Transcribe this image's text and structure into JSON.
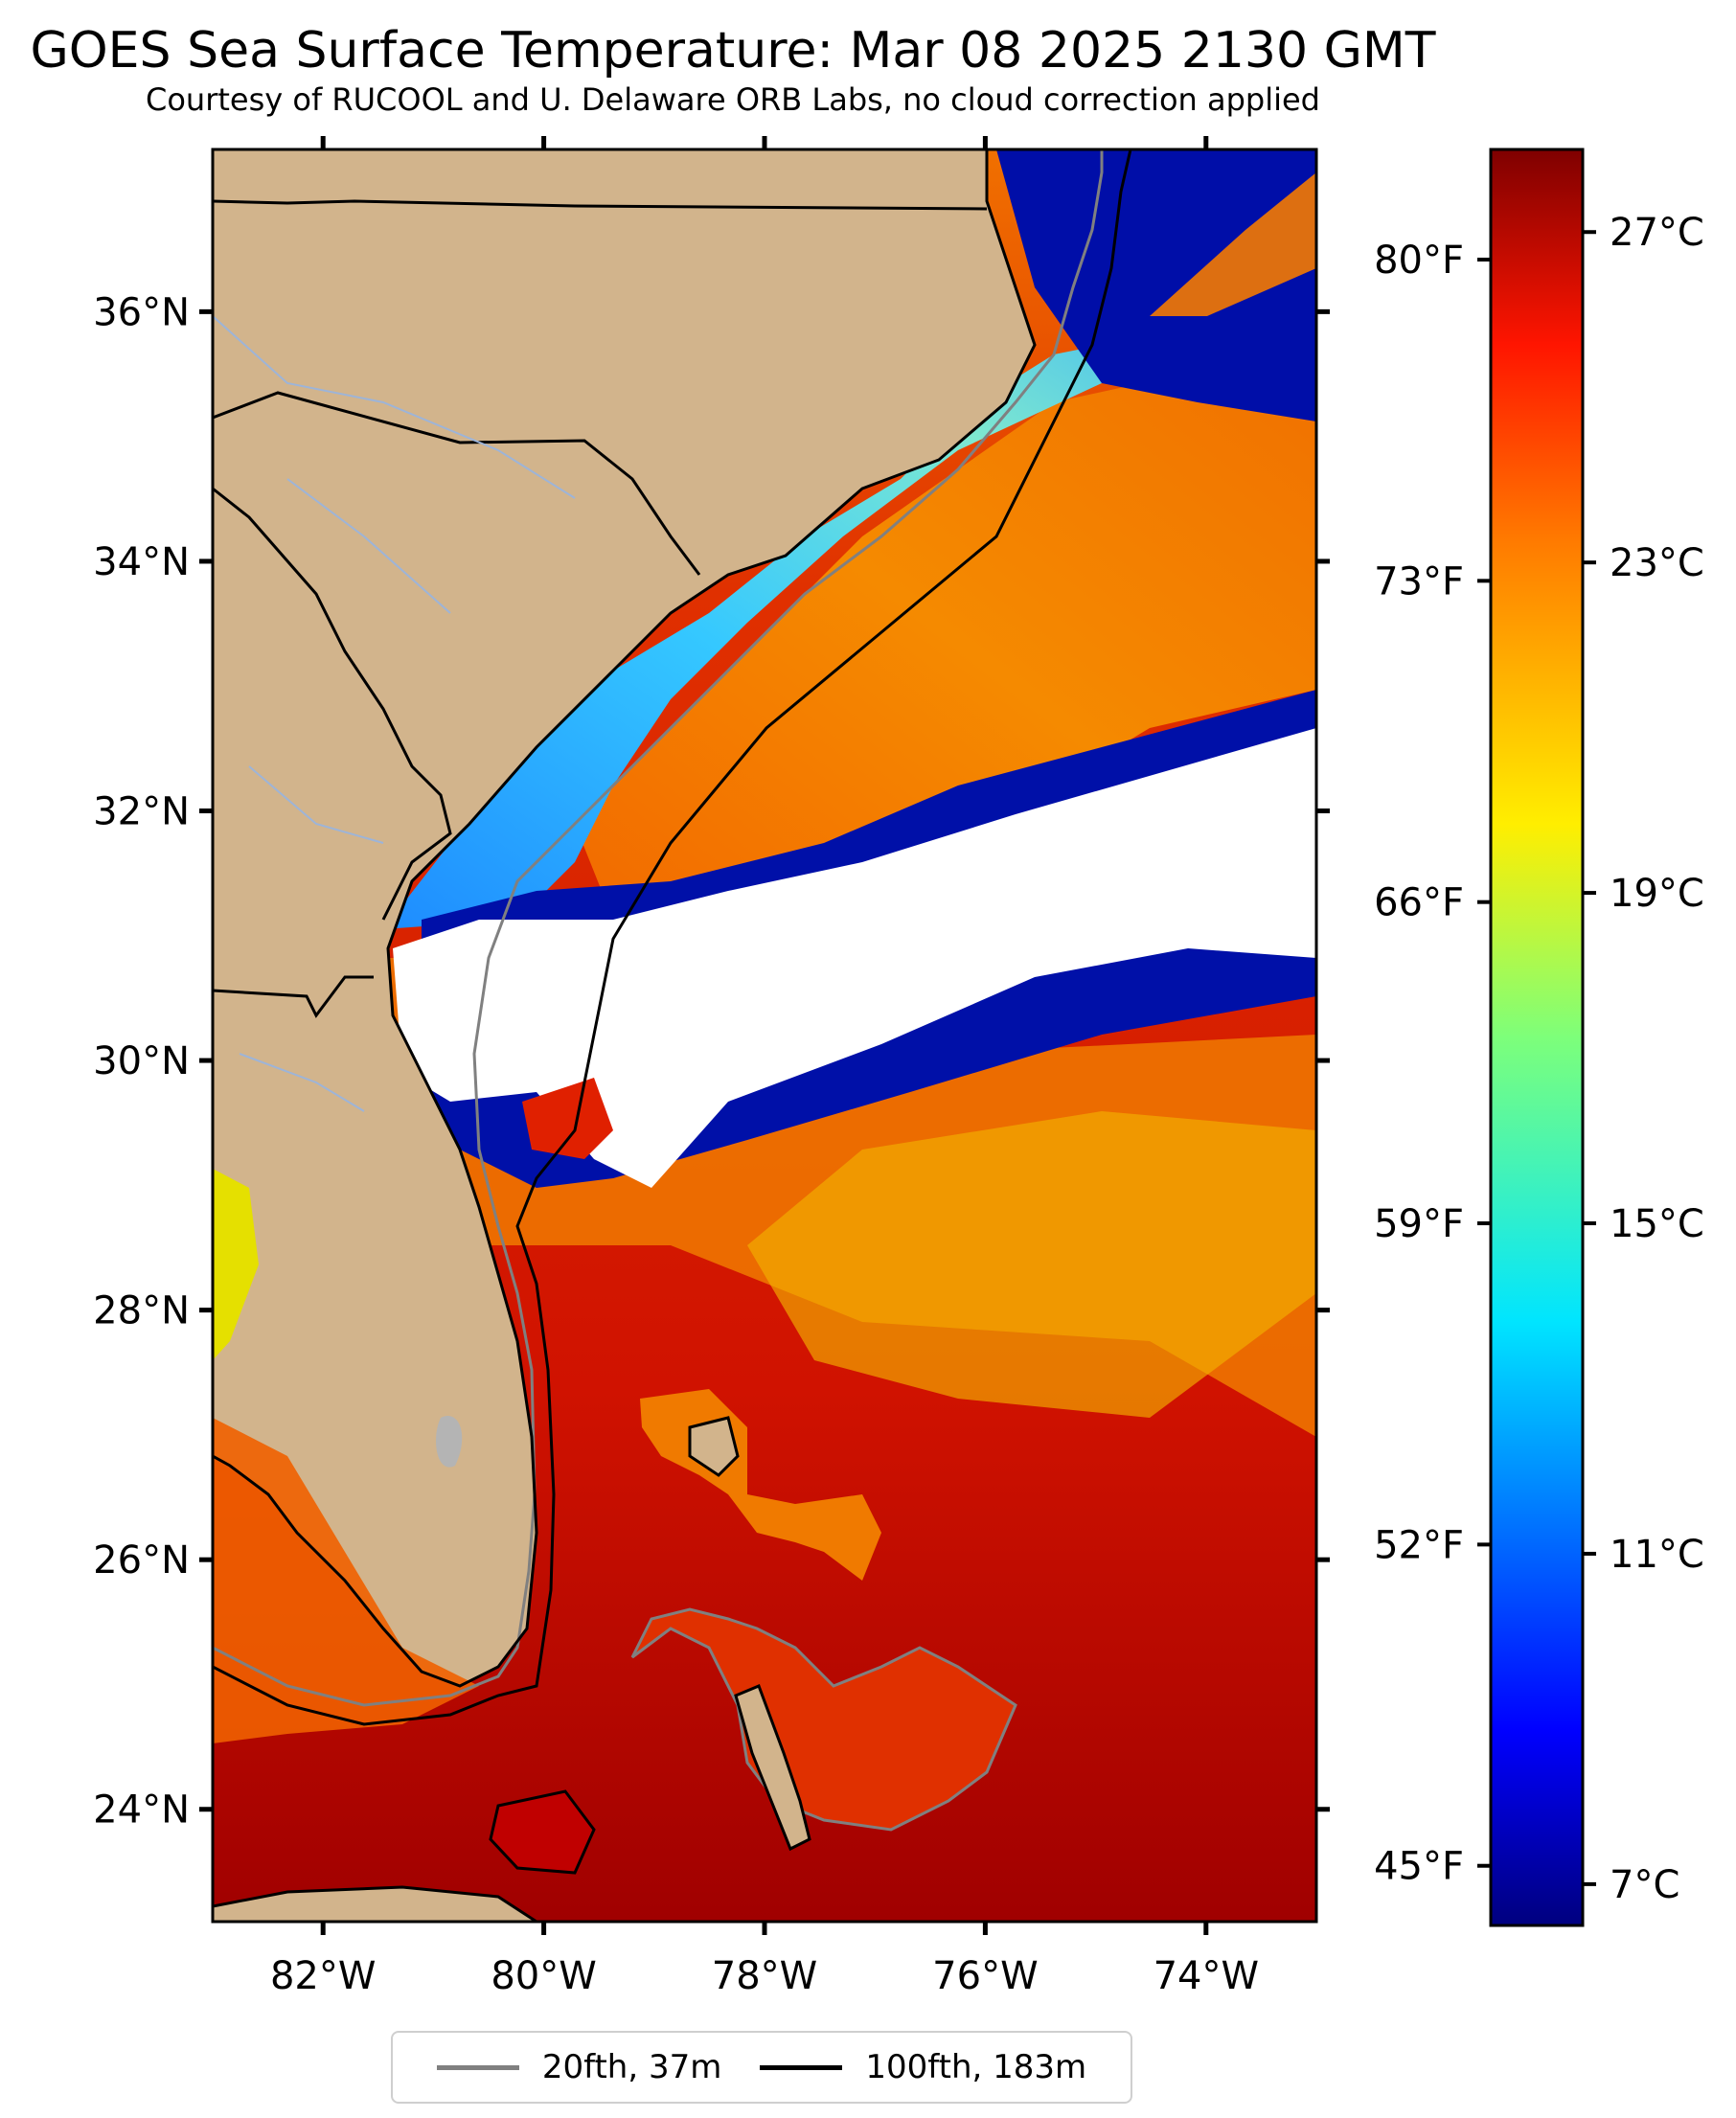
{
  "title": "GOES Sea Surface Temperature: Mar 08 2025 2130 GMT",
  "subtitle": "Courtesy of RUCOOL and U. Delaware ORB Labs, no cloud correction applied",
  "map": {
    "lon_range": [
      -83,
      -73
    ],
    "lat_range": [
      23.1,
      37.3
    ],
    "lat_ticks": [
      {
        "value": 24,
        "label": "24°N"
      },
      {
        "value": 26,
        "label": "26°N"
      },
      {
        "value": 28,
        "label": "28°N"
      },
      {
        "value": 30,
        "label": "30°N"
      },
      {
        "value": 32,
        "label": "32°N"
      },
      {
        "value": 34,
        "label": "34°N"
      },
      {
        "value": 36,
        "label": "36°N"
      }
    ],
    "lon_ticks": [
      {
        "value": -82,
        "label": "82°W"
      },
      {
        "value": -80,
        "label": "80°W"
      },
      {
        "value": -78,
        "label": "78°W"
      },
      {
        "value": -76,
        "label": "76°W"
      },
      {
        "value": -74,
        "label": "74°W"
      }
    ],
    "colors": {
      "land": "#d2b48c",
      "cloud": "#ffffff",
      "warm": "#d81a00",
      "hot": "#a80000",
      "orange": "#f57a00",
      "yellow": "#f2e200",
      "cyan": "#3ad6ff",
      "blue": "#1a5cff",
      "deep_blue": "#0000a0",
      "isobath_20": "#808080",
      "isobath_100": "#000000"
    }
  },
  "colorbar": {
    "celsius_ticks": [
      "27°C",
      "23°C",
      "19°C",
      "15°C",
      "11°C",
      "7°C"
    ],
    "fahrenheit_ticks": [
      "80°F",
      "73°F",
      "66°F",
      "59°F",
      "52°F",
      "45°F"
    ],
    "range_c": [
      6.5,
      28.0
    ]
  },
  "legend": {
    "items": [
      {
        "label": "20fth, 37m",
        "color": "#808080"
      },
      {
        "label": "100fth, 183m",
        "color": "#000000"
      }
    ]
  }
}
